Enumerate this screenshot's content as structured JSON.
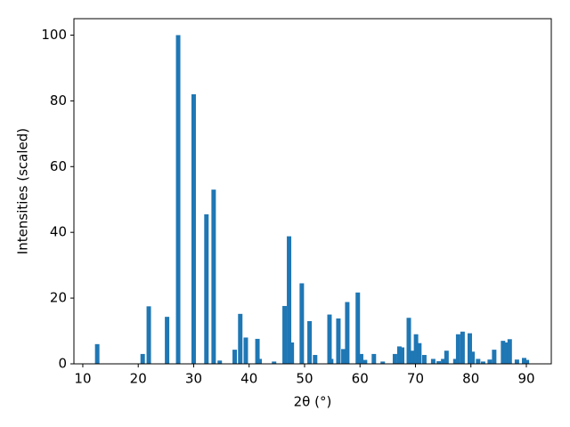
{
  "chart_data": {
    "type": "bar",
    "xlabel": "2θ (°)",
    "ylabel": "Intensities (scaled)",
    "color": "#1f77b4",
    "x": [
      12.6,
      20.8,
      21.9,
      25.2,
      27.2,
      30.0,
      32.3,
      33.6,
      34.7,
      37.4,
      38.4,
      39.4,
      41.5,
      41.9,
      44.5,
      46.4,
      47.2,
      47.7,
      49.5,
      50.9,
      51.9,
      54.5,
      54.8,
      56.1,
      57.0,
      57.7,
      59.6,
      60.2,
      60.9,
      62.5,
      64.1,
      66.3,
      67.1,
      67.6,
      68.8,
      69.4,
      70.1,
      70.7,
      71.6,
      73.2,
      74.2,
      75.0,
      75.6,
      77.2,
      77.7,
      78.5,
      79.8,
      80.3,
      81.3,
      82.2,
      83.4,
      84.2,
      85.8,
      86.3,
      87.0,
      88.3,
      89.6,
      90.1
    ],
    "values": [
      6,
      3,
      17.5,
      14.3,
      100,
      82,
      45.5,
      53,
      1,
      4.3,
      15.2,
      8,
      7.6,
      1.5,
      0.7,
      17.6,
      38.8,
      6.5,
      24.5,
      13,
      2.7,
      15,
      1.5,
      13.8,
      4.5,
      18.8,
      21.7,
      3,
      1.2,
      3,
      0.7,
      3,
      5.3,
      5,
      14,
      4,
      9,
      6.3,
      2.7,
      1.5,
      0.8,
      1.5,
      4,
      1.5,
      9,
      9.8,
      9.3,
      3.7,
      1.5,
      0.7,
      1.3,
      4.3,
      7,
      6.5,
      7.5,
      1.3,
      1.8,
      1.2
    ],
    "xlim": [
      8.4,
      94.5
    ],
    "ylim": [
      0,
      105
    ],
    "xticks": [
      10,
      20,
      30,
      40,
      50,
      60,
      70,
      80,
      90
    ],
    "yticks": [
      0,
      20,
      40,
      60,
      80,
      100
    ]
  }
}
